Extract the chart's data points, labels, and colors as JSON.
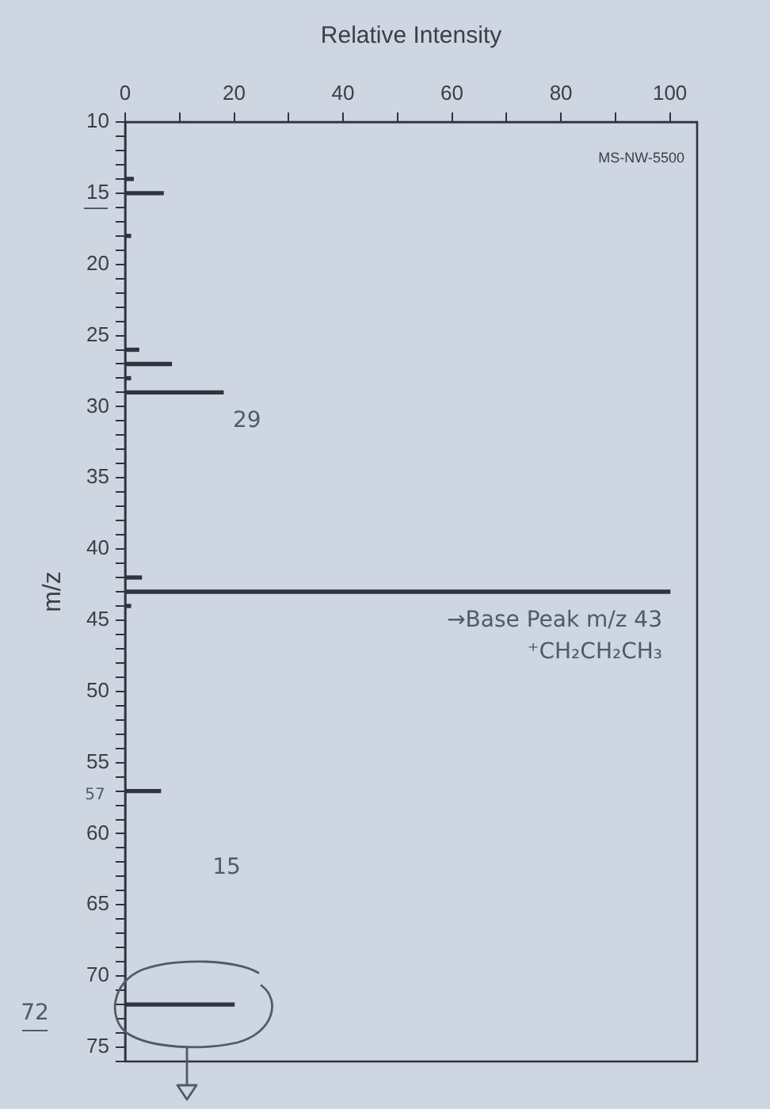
{
  "chart_data": {
    "type": "bar",
    "orientation": "horizontal",
    "xlabel": "Relative Intensity",
    "ylabel": "m/z",
    "categories": [
      "10",
      null,
      null,
      null,
      null,
      "15",
      null,
      null,
      null,
      null,
      "20",
      null,
      null,
      null,
      null,
      "25",
      null,
      null,
      null,
      null,
      "30",
      null,
      null,
      null,
      null,
      "35",
      null,
      null,
      null,
      null,
      "40",
      null,
      null,
      null,
      null,
      "45",
      null,
      null,
      null,
      null,
      "50",
      null,
      null,
      null,
      null,
      "55",
      null,
      null,
      null,
      null,
      "60",
      null,
      null,
      null,
      null,
      "65",
      null,
      null,
      null,
      null,
      "70",
      null,
      null,
      null,
      null,
      "75",
      null
    ],
    "values": [
      null,
      null,
      null,
      null,
      1.5,
      7,
      null,
      null,
      1,
      null,
      null,
      null,
      null,
      null,
      null,
      null,
      2.5,
      8.5,
      1,
      18,
      null,
      null,
      null,
      null,
      null,
      null,
      null,
      null,
      null,
      null,
      null,
      null,
      3,
      100,
      1,
      null,
      null,
      null,
      null,
      null,
      null,
      null,
      null,
      null,
      null,
      null,
      null,
      6.5,
      null,
      null,
      null,
      null,
      null,
      null,
      null,
      null,
      null,
      null,
      null,
      null,
      null,
      null,
      20,
      null,
      null,
      null,
      null
    ],
    "color": "#2f3440",
    "xlim": [
      0,
      105
    ],
    "xticks": [
      0,
      {
        "value": 10,
        "label": null
      },
      20,
      {
        "value": 30,
        "label": null
      },
      40,
      {
        "value": 50,
        "label": null
      },
      60,
      {
        "value": 70,
        "label": null
      },
      80,
      {
        "value": 90,
        "label": null
      },
      100
    ],
    "annotations": [
      "MS-NW-5500",
      "→Base Peak m/z 43",
      "⁺CH₂CH₂CH₃",
      "29",
      "15",
      "57",
      "72"
    ]
  }
}
